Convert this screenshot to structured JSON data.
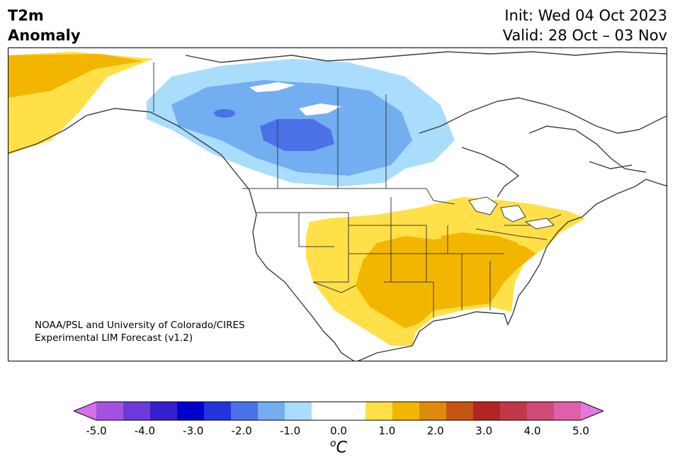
{
  "header": {
    "title_line1": "T2m",
    "title_line2": "Anomaly",
    "init": "Init: Wed 04 Oct 2023",
    "valid": "Valid: 28 Oct – 03 Nov"
  },
  "credit": {
    "line1": "NOAA/PSL and University of Colorado/CIRES",
    "line2": "Experimental LIM Forecast (v1.2)"
  },
  "map": {
    "region": "North America",
    "variable": "2 m temperature anomaly",
    "cold_anomaly_region": "Western/central Canada",
    "warm_anomaly_region": "Southern and eastern United States, Alaska west coast"
  },
  "colorbar": {
    "unit_base": "C",
    "unit_sup": "o",
    "ticks": [
      "-5.0",
      "-4.0",
      "-3.0",
      "-2.0",
      "-1.0",
      "0.0",
      "1.0",
      "2.0",
      "3.0",
      "4.0",
      "5.0"
    ],
    "colors": [
      "#d66fe8",
      "#a352e0",
      "#6b3ad8",
      "#3420cc",
      "#0000cc",
      "#2235dc",
      "#4a72e6",
      "#72aef0",
      "#aadcfc",
      "#ffffff",
      "#ffffff",
      "#ffe048",
      "#f2b600",
      "#de8a0c",
      "#c45412",
      "#b32424",
      "#c23848",
      "#d04a78",
      "#de60a8",
      "#e477e0"
    ]
  }
}
